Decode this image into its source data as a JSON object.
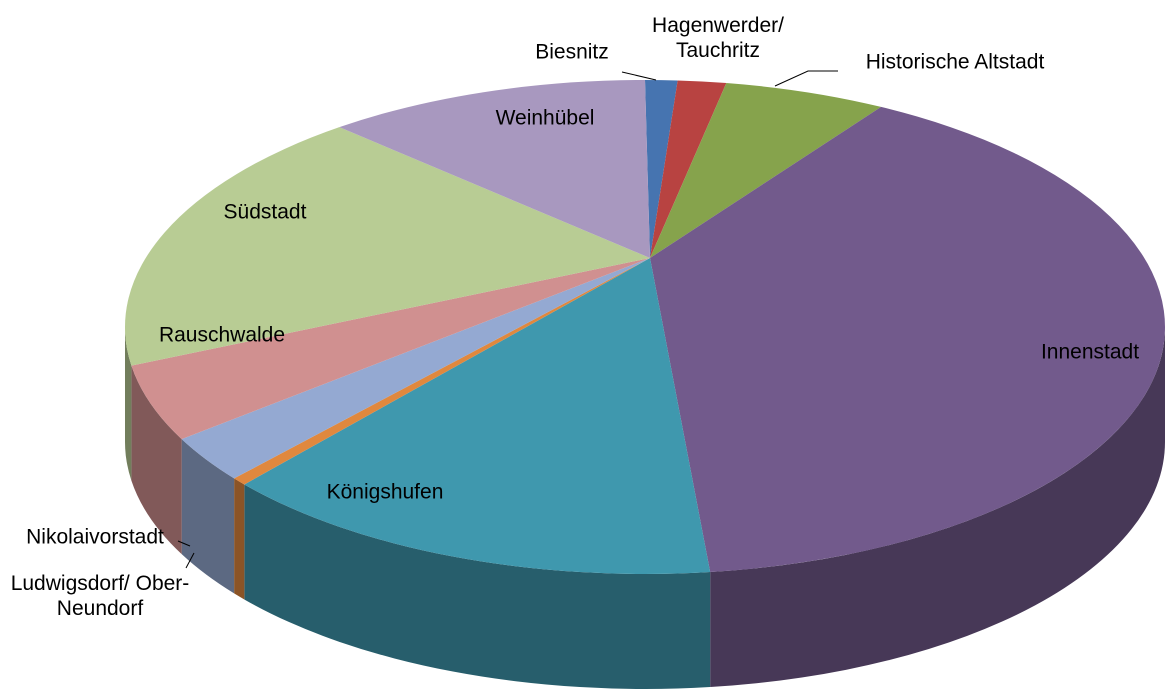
{
  "chart_data": {
    "type": "pie",
    "categories": [
      "Biesnitz",
      "Hagenwerder/ Tauchritz",
      "Historische Altstadt",
      "Innenstadt",
      "Königshufen",
      "Ludwigsdorf/ Ober-Neundorf",
      "Nikolaivorstadt",
      "Rauschwalde",
      "Südstadt",
      "Weinhübel"
    ],
    "values": [
      1,
      1.5,
      5,
      40.5,
      16,
      0.5,
      3,
      5,
      17.5,
      10
    ],
    "colors": [
      "#4674b0",
      "#b84341",
      "#86a34c",
      "#725a8c",
      "#3f98ae",
      "#e0883e",
      "#94a9d2",
      "#d09090",
      "#b8cc94",
      "#a898bf"
    ]
  }
}
